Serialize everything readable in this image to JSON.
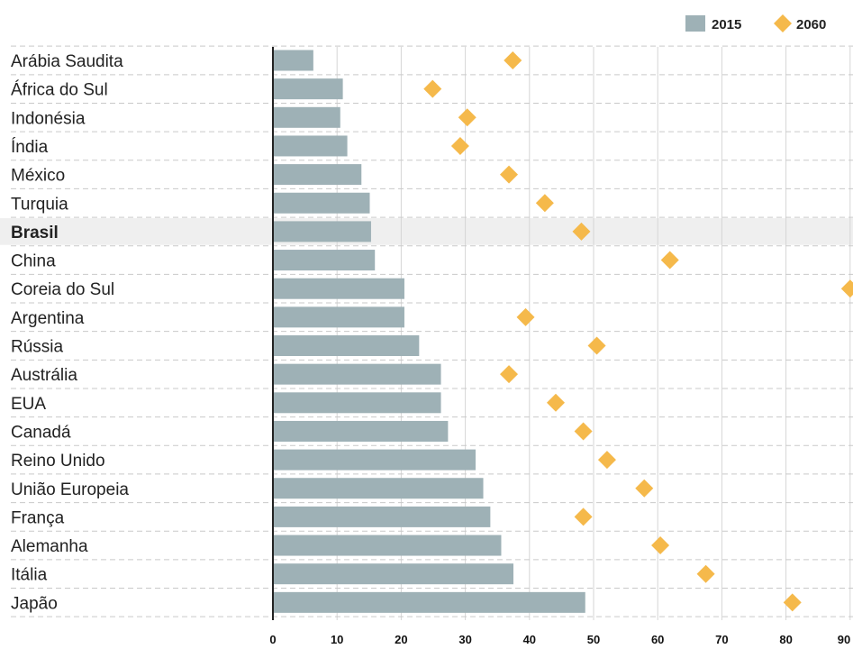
{
  "chart_data": {
    "type": "bar",
    "orientation": "horizontal",
    "categories": [
      "Arábia Saudita",
      "África do Sul",
      "Indonésia",
      "Índia",
      "México",
      "Turquia",
      "Brasil",
      "China",
      "Coreia do Sul",
      "Argentina",
      "Rússia",
      "Austrália",
      "EUA",
      "Canadá",
      "Reino Unido",
      "União Europeia",
      "França",
      "Alemanha",
      "Itália",
      "Japão"
    ],
    "highlighted_category": "Brasil",
    "series": [
      {
        "name": "2015",
        "mark": "bar",
        "color": "#9eb1b6",
        "values": [
          6.3,
          10.9,
          10.5,
          11.6,
          13.8,
          15.1,
          15.3,
          15.9,
          20.5,
          20.5,
          22.8,
          26.2,
          26.2,
          27.3,
          31.6,
          32.8,
          33.9,
          35.6,
          37.5,
          48.7
        ]
      },
      {
        "name": "2060",
        "mark": "diamond",
        "color": "#f5b94b",
        "values": [
          37.4,
          24.9,
          30.3,
          29.2,
          36.8,
          42.4,
          48.1,
          61.9,
          90.0,
          39.4,
          50.5,
          36.8,
          44.1,
          48.4,
          52.1,
          57.9,
          48.4,
          60.4,
          67.5,
          81.0
        ]
      }
    ],
    "xlim": [
      0,
      90
    ],
    "xticks": [
      0,
      10,
      20,
      30,
      40,
      50,
      60,
      70,
      80,
      90
    ],
    "grid": true,
    "legend_position": "top-right",
    "title": "",
    "xlabel": "",
    "ylabel": ""
  }
}
